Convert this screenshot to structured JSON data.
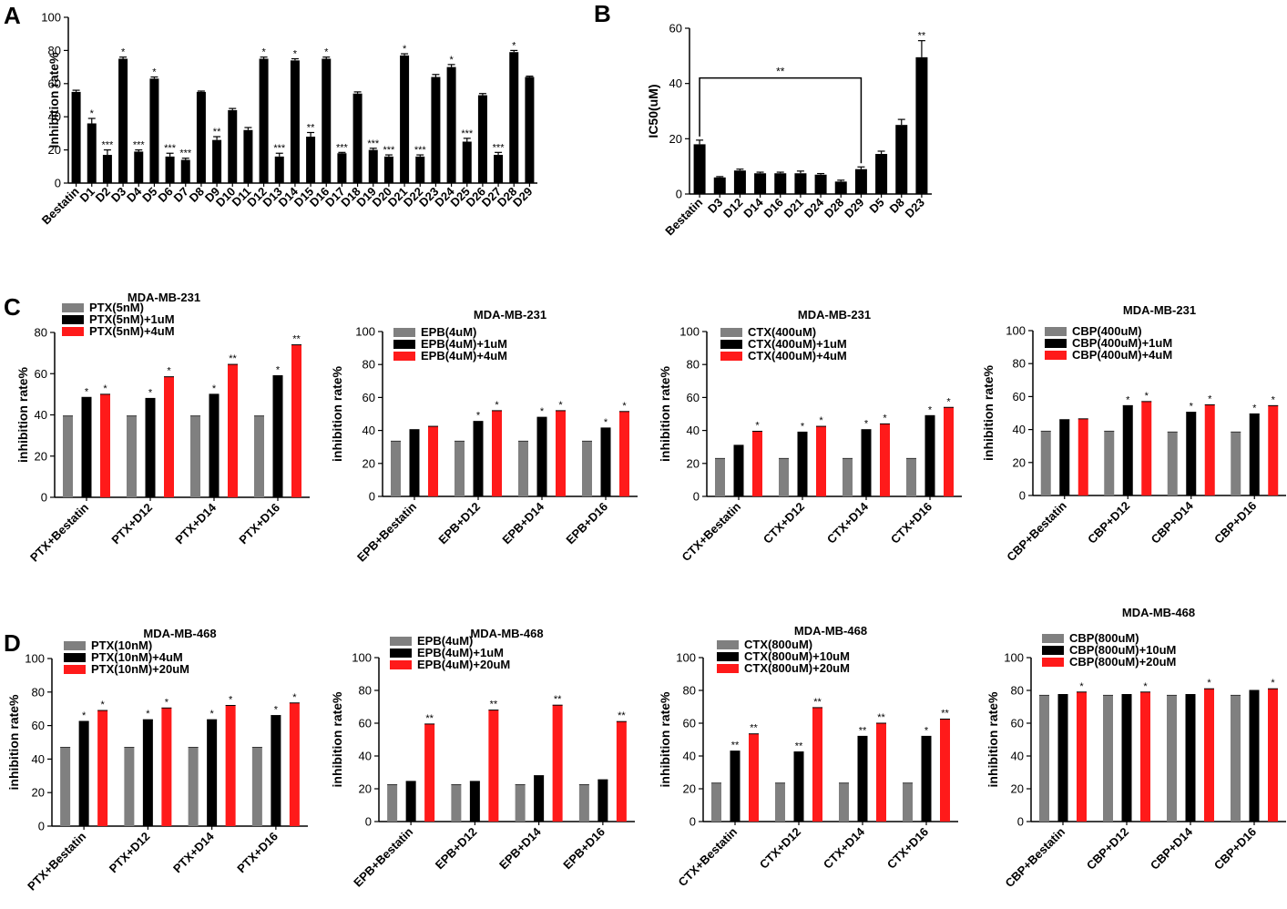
{
  "panel_labels": {
    "A": "A",
    "B": "B",
    "C": "C",
    "D": "D"
  },
  "colors": {
    "gray": "#808080",
    "black": "#000000",
    "red": "#ff1a1a"
  },
  "chart_data": [
    {
      "id": "A",
      "type": "bar",
      "title": "",
      "ylabel": "Inhibition rate%",
      "xlabel": "",
      "ylim": [
        0,
        100
      ],
      "yticks": [
        0,
        20,
        40,
        60,
        80,
        100
      ],
      "categories": [
        "Bestatin",
        "D1",
        "D2",
        "D3",
        "D4",
        "D5",
        "D6",
        "D7",
        "D8",
        "D9",
        "D10",
        "D11",
        "D12",
        "D13",
        "D14",
        "D15",
        "D16",
        "D17",
        "D18",
        "D19",
        "D20",
        "D21",
        "D22",
        "D23",
        "D24",
        "D25",
        "D26",
        "D27",
        "D28",
        "D29"
      ],
      "values": [
        55,
        36,
        17,
        75,
        19,
        63,
        16,
        14,
        55,
        26,
        44,
        32,
        75,
        16,
        74,
        28,
        75,
        18,
        54,
        20,
        16,
        77,
        16,
        64,
        70,
        25,
        53,
        17,
        79,
        64
      ],
      "errors": [
        1,
        3,
        3,
        1,
        1,
        1,
        2,
        1,
        0.5,
        2,
        1,
        1.5,
        1,
        2,
        1,
        2.5,
        1,
        0.5,
        1,
        1,
        1,
        1,
        1,
        1.5,
        1.5,
        2,
        1,
        1.5,
        1,
        0.5
      ],
      "annotations": [
        "",
        "*",
        "***",
        "*",
        "***",
        "*",
        "***",
        "***",
        "",
        "**",
        "",
        "",
        "*",
        "***",
        "*",
        "**",
        "*",
        "***",
        "",
        "***",
        "***",
        "*",
        "***",
        "",
        "*",
        "***",
        "",
        "***",
        "*",
        ""
      ]
    },
    {
      "id": "B",
      "type": "bar",
      "title": "",
      "ylabel": "IC50(uM)",
      "xlabel": "",
      "ylim": [
        0,
        60
      ],
      "yticks": [
        0,
        20,
        40,
        60
      ],
      "categories": [
        "Bestatin",
        "D3",
        "D12",
        "D14",
        "D16",
        "D21",
        "D24",
        "D28",
        "D29",
        "D5",
        "D8",
        "D23"
      ],
      "values": [
        18,
        6,
        8.5,
        7.5,
        7.5,
        7.5,
        7,
        4.5,
        9,
        14.5,
        25,
        49.5
      ],
      "errors": [
        1.5,
        0.3,
        0.5,
        0.4,
        0.4,
        0.8,
        0.4,
        0.5,
        0.8,
        1,
        2,
        6
      ],
      "annotations": [
        "",
        "",
        "",
        "",
        "",
        "",
        "",
        "",
        "",
        "",
        "",
        "**"
      ],
      "bracket": {
        "from": 0,
        "to": 8,
        "label": "**",
        "y": 42
      }
    },
    {
      "id": "C1",
      "type": "bar",
      "title": "MDA-MB-231",
      "ylabel": "inhibition rate%",
      "ylim": [
        0,
        80
      ],
      "yticks": [
        0,
        20,
        40,
        60,
        80
      ],
      "categories": [
        "PTX+Bestatin",
        "PTX+D12",
        "PTX+D14",
        "PTX+D16"
      ],
      "series": [
        {
          "name": "PTX(5nM)",
          "color": "#808080",
          "values": [
            39.5,
            39.5,
            39.5,
            39.5
          ],
          "annotations": [
            "",
            "",
            "",
            ""
          ]
        },
        {
          "name": "PTX(5nM)+1uM",
          "color": "#000000",
          "values": [
            48.5,
            48,
            50,
            59
          ],
          "annotations": [
            "*",
            "*",
            "*",
            "*"
          ]
        },
        {
          "name": "PTX(5nM)+4uM",
          "color": "#ff1a1a",
          "values": [
            50,
            58.5,
            64.5,
            74
          ],
          "annotations": [
            "*",
            "*",
            "**",
            "**"
          ]
        }
      ]
    },
    {
      "id": "C2",
      "type": "bar",
      "title": "MDA-MB-231",
      "ylabel": "inhibition rate%",
      "ylim": [
        0,
        100
      ],
      "yticks": [
        0,
        20,
        40,
        60,
        80,
        100
      ],
      "categories": [
        "EPB+Bestatin",
        "EPB+D12",
        "EPB+D14",
        "EPB+D16"
      ],
      "series": [
        {
          "name": "EPB(4uM)",
          "color": "#808080",
          "values": [
            33.5,
            33.5,
            33.5,
            33.5
          ],
          "annotations": [
            "",
            "",
            "",
            ""
          ]
        },
        {
          "name": "EPB(4uM)+1uM",
          "color": "#000000",
          "values": [
            40.5,
            45.5,
            48,
            41.5
          ],
          "annotations": [
            "",
            "*",
            "*",
            "*"
          ]
        },
        {
          "name": "EPB(4uM)+4uM",
          "color": "#ff1a1a",
          "values": [
            42.5,
            52,
            52,
            51.5
          ],
          "annotations": [
            "",
            "*",
            "*",
            "*"
          ]
        }
      ]
    },
    {
      "id": "C3",
      "type": "bar",
      "title": "MDA-MB-231",
      "ylabel": "inhibition rate%",
      "ylim": [
        0,
        100
      ],
      "yticks": [
        0,
        20,
        40,
        60,
        80,
        100
      ],
      "categories": [
        "CTX+Bestatin",
        "CTX+D12",
        "CTX+D14",
        "CTX+D16"
      ],
      "series": [
        {
          "name": "CTX(400uM)",
          "color": "#808080",
          "values": [
            23,
            23,
            23,
            23
          ],
          "annotations": [
            "",
            "",
            "",
            ""
          ]
        },
        {
          "name": "CTX(400uM)+1uM",
          "color": "#000000",
          "values": [
            31,
            39,
            40.5,
            49
          ],
          "annotations": [
            "",
            "*",
            "*",
            "*"
          ]
        },
        {
          "name": "CTX(400uM)+4uM",
          "color": "#ff1a1a",
          "values": [
            39.5,
            42.5,
            44,
            54
          ],
          "annotations": [
            "*",
            "*",
            "*",
            "*"
          ]
        }
      ]
    },
    {
      "id": "C4",
      "type": "bar",
      "title": "MDA-MB-231",
      "ylabel": "inhibition rate%",
      "ylim": [
        0,
        100
      ],
      "yticks": [
        0,
        20,
        40,
        60,
        80,
        100
      ],
      "categories": [
        "CBP+Bestatin",
        "CBP+D12",
        "CBP+D14",
        "CBP+D16"
      ],
      "series": [
        {
          "name": "CBP(400uM)",
          "color": "#808080",
          "values": [
            39,
            39,
            38.5,
            38.5
          ],
          "annotations": [
            "",
            "",
            "",
            ""
          ]
        },
        {
          "name": "CBP(400uM)+1uM",
          "color": "#000000",
          "values": [
            46,
            54.5,
            50.5,
            49.5
          ],
          "annotations": [
            "",
            "*",
            "*",
            "*"
          ]
        },
        {
          "name": "CBP(400uM)+4uM",
          "color": "#ff1a1a",
          "values": [
            46.5,
            57,
            55,
            54.5
          ],
          "annotations": [
            "",
            "*",
            "*",
            "*"
          ]
        }
      ]
    },
    {
      "id": "D1",
      "type": "bar",
      "title": "MDA-MB-468",
      "ylabel": "inhibition rate%",
      "ylim": [
        0,
        100
      ],
      "yticks": [
        0,
        20,
        40,
        60,
        80,
        100
      ],
      "categories": [
        "PTX+Bestatin",
        "PTX+D12",
        "PTX+D14",
        "PTX+D16"
      ],
      "series": [
        {
          "name": "PTX(10nM)",
          "color": "#808080",
          "values": [
            47,
            47,
            47,
            47
          ],
          "annotations": [
            "",
            "",
            "",
            ""
          ]
        },
        {
          "name": "PTX(10nM)+4uM",
          "color": "#000000",
          "values": [
            62.5,
            63.5,
            63.5,
            66
          ],
          "annotations": [
            "*",
            "*",
            "*",
            "*"
          ]
        },
        {
          "name": "PTX(10nM)+20uM",
          "color": "#ff1a1a",
          "values": [
            69,
            70.5,
            72,
            73.5
          ],
          "annotations": [
            "*",
            "*",
            "*",
            "*"
          ]
        }
      ]
    },
    {
      "id": "D2",
      "type": "bar",
      "title": "MDA-MB-468",
      "ylabel": "inhibition rate%",
      "ylim": [
        0,
        100
      ],
      "yticks": [
        0,
        20,
        40,
        60,
        80,
        100
      ],
      "categories": [
        "EPB+Bestatin",
        "EPB+D12",
        "EPB+D14",
        "EPB+D16"
      ],
      "series": [
        {
          "name": "EPB(4uM)",
          "color": "#808080",
          "values": [
            22.5,
            22.5,
            22.5,
            22.5
          ],
          "annotations": [
            "",
            "",
            "",
            ""
          ]
        },
        {
          "name": "EPB(4uM)+1uM",
          "color": "#000000",
          "values": [
            24.5,
            24.5,
            28,
            25.5
          ],
          "annotations": [
            "",
            "",
            "",
            ""
          ]
        },
        {
          "name": "EPB(4uM)+20uM",
          "color": "#ff1a1a",
          "values": [
            59.5,
            68,
            71,
            61
          ],
          "annotations": [
            "**",
            "**",
            "**",
            "**"
          ]
        }
      ]
    },
    {
      "id": "D3",
      "type": "bar",
      "title": "MDA-MB-468",
      "ylabel": "inhibition rate%",
      "ylim": [
        0,
        100
      ],
      "yticks": [
        0,
        20,
        40,
        60,
        80,
        100
      ],
      "categories": [
        "CTX+Bestatin",
        "CTX+D12",
        "CTX+D14",
        "CTX+D16"
      ],
      "series": [
        {
          "name": "CTX(800uM)",
          "color": "#808080",
          "values": [
            23.5,
            23.5,
            23.5,
            23.5
          ],
          "annotations": [
            "",
            "",
            "",
            ""
          ]
        },
        {
          "name": "CTX(800uM)+10uM",
          "color": "#000000",
          "values": [
            43,
            42.5,
            52,
            52
          ],
          "annotations": [
            "**",
            "**",
            "**",
            "*"
          ]
        },
        {
          "name": "CTX(800uM)+20uM",
          "color": "#ff1a1a",
          "values": [
            53.5,
            69.5,
            60,
            62.5
          ],
          "annotations": [
            "**",
            "**",
            "**",
            "**"
          ]
        }
      ]
    },
    {
      "id": "D4",
      "type": "bar",
      "title": "MDA-MB-468",
      "ylabel": "inhibition rate%",
      "ylim": [
        0,
        100
      ],
      "yticks": [
        0,
        20,
        40,
        60,
        80,
        100
      ],
      "categories": [
        "CBP+Bestatin",
        "CBP+D12",
        "CBP+D14",
        "CBP+D16"
      ],
      "series": [
        {
          "name": "CBP(800uM)",
          "color": "#808080",
          "values": [
            77,
            77,
            77,
            77
          ],
          "annotations": [
            "",
            "",
            "",
            ""
          ]
        },
        {
          "name": "CBP(800uM)+10uM",
          "color": "#000000",
          "values": [
            77.5,
            77.5,
            77.5,
            80
          ],
          "annotations": [
            "",
            "",
            "",
            ""
          ]
        },
        {
          "name": "CBP(800uM)+20uM",
          "color": "#ff1a1a",
          "values": [
            79,
            79,
            81,
            81
          ],
          "annotations": [
            "*",
            "*",
            "*",
            "*"
          ]
        }
      ]
    }
  ]
}
